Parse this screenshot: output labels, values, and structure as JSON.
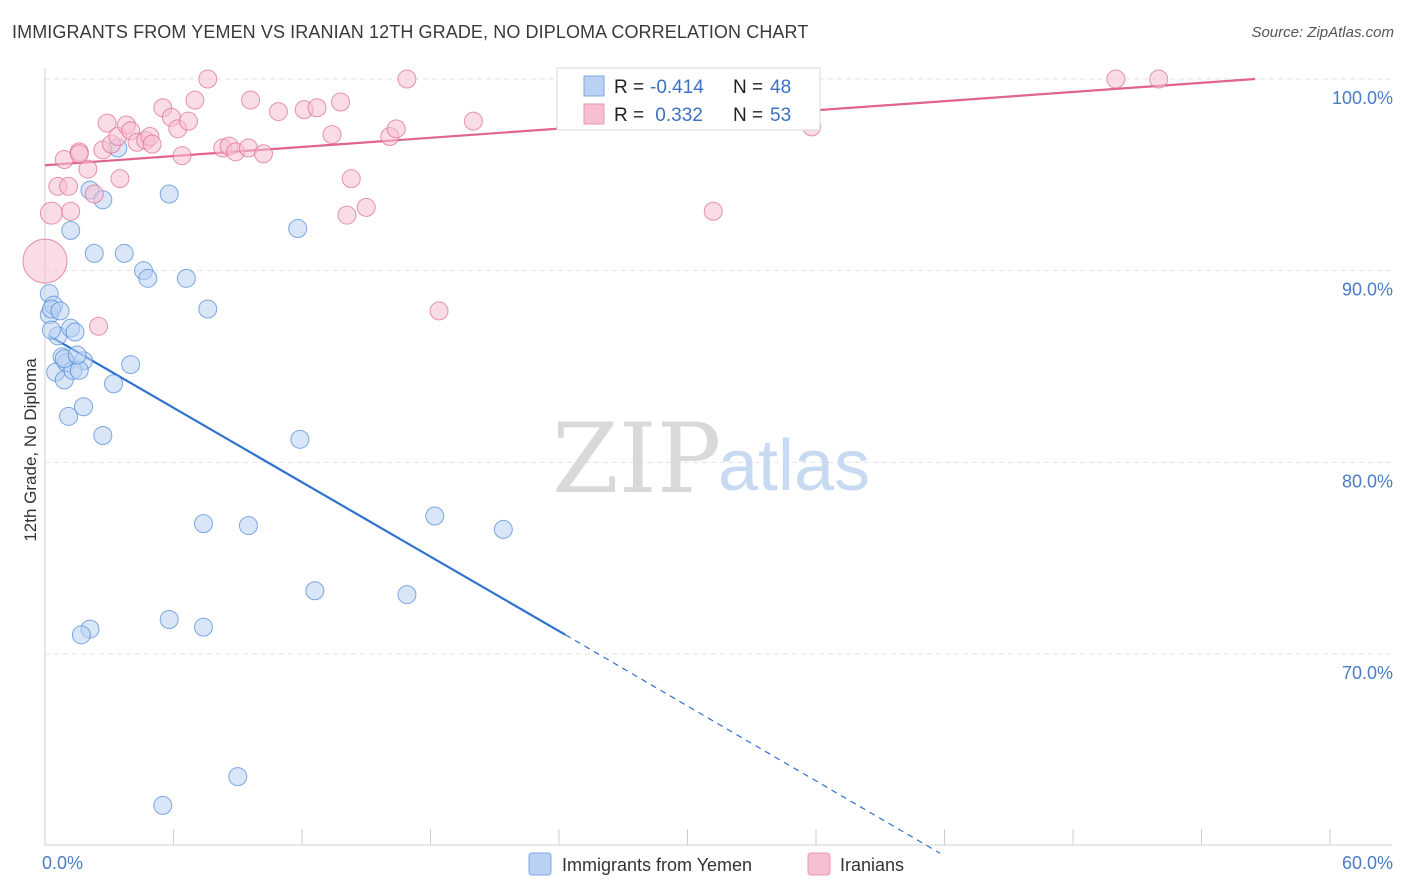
{
  "header": {
    "title": "IMMIGRANTS FROM YEMEN VS IRANIAN 12TH GRADE, NO DIPLOMA CORRELATION CHART",
    "source": "Source: ZipAtlas.com"
  },
  "watermark": {
    "zip": "ZIP",
    "atlas": "atlas"
  },
  "colors": {
    "blue": "#4a86d8",
    "blue_fill": "#b9d2f3",
    "pink": "#e0688f",
    "pink_fill": "#f6bfd1",
    "tick_text": "#4a7cc7",
    "grid": "#e3e3e3"
  },
  "stats_legend": {
    "rows": [
      {
        "r_label": "R = ",
        "r_value": "-0.414",
        "n_label": "N = ",
        "n_value": "48"
      },
      {
        "r_label": "R = ",
        "r_value": " 0.332",
        "n_label": "N = ",
        "n_value": "53"
      }
    ]
  },
  "chart_data": {
    "type": "scatter",
    "ylabel": "12th Grade, No Diploma",
    "xlim": [
      0,
      60
    ],
    "ylim": [
      60,
      100
    ],
    "x_tick_labels": [
      "0.0%",
      "60.0%"
    ],
    "y_ticks": [
      70,
      80,
      90,
      100
    ],
    "y_tick_labels": [
      "70.0%",
      "80.0%",
      "90.0%",
      "100.0%"
    ],
    "grid": true,
    "legend_position": "bottom-center",
    "series": [
      {
        "name": "Immigrants from Yemen",
        "color": "blue",
        "trend": {
          "x0": 0.2,
          "y0": 86.6,
          "x1": 24.3,
          "y1": 71.0,
          "dash_to_x": 41.8,
          "dash_to_y": 59.6
        },
        "points": [
          [
            0.2,
            88.8
          ],
          [
            0.2,
            87.7
          ],
          [
            0.4,
            88.2
          ],
          [
            0.3,
            88.0
          ],
          [
            0.6,
            86.6
          ],
          [
            0.8,
            85.5
          ],
          [
            0.5,
            84.7
          ],
          [
            1.0,
            85.2
          ],
          [
            1.2,
            87.0
          ],
          [
            1.4,
            86.8
          ],
          [
            1.8,
            85.3
          ],
          [
            0.9,
            84.3
          ],
          [
            1.3,
            84.8
          ],
          [
            1.6,
            84.8
          ],
          [
            3.2,
            84.1
          ],
          [
            4.0,
            85.1
          ],
          [
            1.1,
            82.4
          ],
          [
            1.8,
            82.9
          ],
          [
            2.7,
            81.4
          ],
          [
            1.2,
            92.1
          ],
          [
            2.1,
            94.2
          ],
          [
            2.7,
            93.7
          ],
          [
            2.3,
            90.9
          ],
          [
            3.4,
            96.4
          ],
          [
            3.7,
            90.9
          ],
          [
            4.6,
            90.0
          ],
          [
            4.8,
            89.6
          ],
          [
            6.6,
            89.6
          ],
          [
            5.8,
            94.0
          ],
          [
            7.6,
            88.0
          ],
          [
            11.8,
            92.2
          ],
          [
            11.9,
            81.2
          ],
          [
            7.4,
            76.8
          ],
          [
            9.5,
            76.7
          ],
          [
            18.2,
            77.2
          ],
          [
            21.4,
            76.5
          ],
          [
            12.6,
            73.3
          ],
          [
            16.9,
            73.1
          ],
          [
            5.8,
            71.8
          ],
          [
            7.4,
            71.4
          ],
          [
            2.1,
            71.3
          ],
          [
            1.7,
            71.0
          ],
          [
            9.0,
            63.6
          ],
          [
            5.5,
            62.1
          ],
          [
            0.3,
            86.9
          ],
          [
            0.9,
            85.4
          ],
          [
            1.5,
            85.6
          ],
          [
            0.7,
            87.9
          ]
        ]
      },
      {
        "name": "Iranians",
        "color": "pink",
        "trend": {
          "x0": 0.0,
          "y0": 95.5,
          "x1": 56.5,
          "y1": 100.0
        },
        "points": [
          [
            0.0,
            90.5
          ],
          [
            0.3,
            93.0
          ],
          [
            0.6,
            94.4
          ],
          [
            0.9,
            95.8
          ],
          [
            1.1,
            94.4
          ],
          [
            1.2,
            93.1
          ],
          [
            1.6,
            96.2
          ],
          [
            2.0,
            95.3
          ],
          [
            2.3,
            94.0
          ],
          [
            2.7,
            96.3
          ],
          [
            2.9,
            97.7
          ],
          [
            3.1,
            96.6
          ],
          [
            3.4,
            97.0
          ],
          [
            3.8,
            97.6
          ],
          [
            4.0,
            97.3
          ],
          [
            4.3,
            96.7
          ],
          [
            4.7,
            96.8
          ],
          [
            4.9,
            97.0
          ],
          [
            5.0,
            96.6
          ],
          [
            5.5,
            98.5
          ],
          [
            5.9,
            98.0
          ],
          [
            6.2,
            97.4
          ],
          [
            6.4,
            96.0
          ],
          [
            6.7,
            97.8
          ],
          [
            7.0,
            98.9
          ],
          [
            7.6,
            100.0
          ],
          [
            8.3,
            96.4
          ],
          [
            8.6,
            96.5
          ],
          [
            8.9,
            96.2
          ],
          [
            9.5,
            96.4
          ],
          [
            9.6,
            98.9
          ],
          [
            10.2,
            96.1
          ],
          [
            10.9,
            98.3
          ],
          [
            12.1,
            98.4
          ],
          [
            12.7,
            98.5
          ],
          [
            13.4,
            97.1
          ],
          [
            13.8,
            98.8
          ],
          [
            14.1,
            92.9
          ],
          [
            14.3,
            94.8
          ],
          [
            15.0,
            93.3
          ],
          [
            16.1,
            97.0
          ],
          [
            16.4,
            97.4
          ],
          [
            16.9,
            100.0
          ],
          [
            18.4,
            87.9
          ],
          [
            20.0,
            97.8
          ],
          [
            31.2,
            93.1
          ],
          [
            35.2,
            100.0
          ],
          [
            35.8,
            97.5
          ],
          [
            50.0,
            100.0
          ],
          [
            52.0,
            100.0
          ],
          [
            2.5,
            87.1
          ],
          [
            3.5,
            94.8
          ],
          [
            1.6,
            96.1
          ]
        ]
      }
    ]
  }
}
